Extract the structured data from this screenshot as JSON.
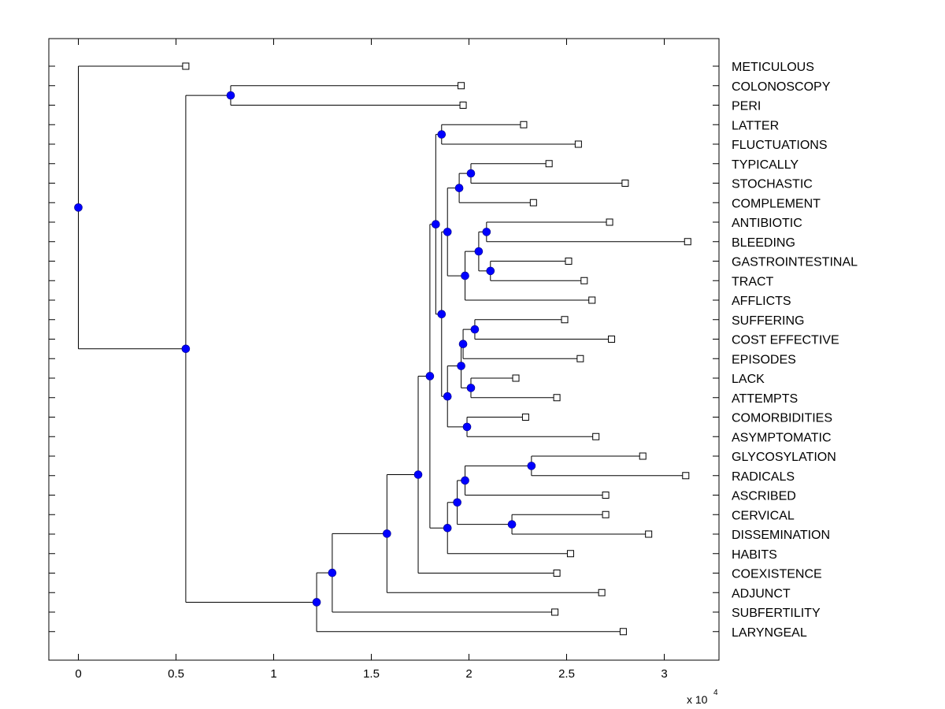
{
  "chart_data": {
    "type": "dendrogram",
    "title": "",
    "xlabel": "",
    "ylabel": "",
    "x_scale_label": "x 10",
    "x_scale_exponent": "4",
    "xlim": [
      -0.15,
      3.28
    ],
    "xticks": [
      0,
      0.5,
      1,
      1.5,
      2,
      2.5,
      3
    ],
    "xtick_labels": [
      "0",
      "0.5",
      "1",
      "1.5",
      "2",
      "2.5",
      "3"
    ],
    "grid": false,
    "node_color": "#0000ff",
    "line_color": "#000000",
    "leaves": [
      {
        "label": "METICULOUS",
        "x": 0.55
      },
      {
        "label": "COLONOSCOPY",
        "x": 1.96
      },
      {
        "label": "PERI",
        "x": 1.97
      },
      {
        "label": "LATTER",
        "x": 2.28
      },
      {
        "label": "FLUCTUATIONS",
        "x": 2.56
      },
      {
        "label": "TYPICALLY",
        "x": 2.41
      },
      {
        "label": "STOCHASTIC",
        "x": 2.8
      },
      {
        "label": "COMPLEMENT",
        "x": 2.33
      },
      {
        "label": "ANTIBIOTIC",
        "x": 2.72
      },
      {
        "label": "BLEEDING",
        "x": 3.12
      },
      {
        "label": "GASTROINTESTINAL",
        "x": 2.51
      },
      {
        "label": "TRACT",
        "x": 2.59
      },
      {
        "label": "AFFLICTS",
        "x": 2.63
      },
      {
        "label": "SUFFERING",
        "x": 2.49
      },
      {
        "label": "COST EFFECTIVE",
        "x": 2.73
      },
      {
        "label": "EPISODES",
        "x": 2.57
      },
      {
        "label": "LACK",
        "x": 2.24
      },
      {
        "label": "ATTEMPTS",
        "x": 2.45
      },
      {
        "label": "COMORBIDITIES",
        "x": 2.29
      },
      {
        "label": "ASYMPTOMATIC",
        "x": 2.65
      },
      {
        "label": "GLYCOSYLATION",
        "x": 2.89
      },
      {
        "label": "RADICALS",
        "x": 3.11
      },
      {
        "label": "ASCRIBED",
        "x": 2.7
      },
      {
        "label": "CERVICAL",
        "x": 2.7
      },
      {
        "label": "DISSEMINATION",
        "x": 2.92
      },
      {
        "label": "HABITS",
        "x": 2.52
      },
      {
        "label": "COEXISTENCE",
        "x": 2.45
      },
      {
        "label": "ADJUNCT",
        "x": 2.68
      },
      {
        "label": "SUBFERTILITY",
        "x": 2.44
      },
      {
        "label": "LARYNGEAL",
        "x": 2.79
      }
    ],
    "nodes": [
      {
        "id": "n1",
        "x": 0.78,
        "children": [
          "L1",
          "L2"
        ]
      },
      {
        "id": "n2",
        "x": 1.86,
        "children": [
          "L3",
          "L4"
        ]
      },
      {
        "id": "n3",
        "x": 2.01,
        "children": [
          "L5",
          "L6"
        ]
      },
      {
        "id": "n4",
        "x": 1.95,
        "children": [
          "n3",
          "L7"
        ]
      },
      {
        "id": "n5",
        "x": 2.09,
        "children": [
          "L8",
          "L9"
        ]
      },
      {
        "id": "n6",
        "x": 2.11,
        "children": [
          "L10",
          "L11"
        ]
      },
      {
        "id": "n7",
        "x": 2.05,
        "children": [
          "n5",
          "n6"
        ]
      },
      {
        "id": "n8",
        "x": 1.98,
        "children": [
          "n7",
          "L12"
        ]
      },
      {
        "id": "n9",
        "x": 1.89,
        "children": [
          "n4",
          "n8"
        ]
      },
      {
        "id": "n10",
        "x": 2.03,
        "children": [
          "L13",
          "L14"
        ]
      },
      {
        "id": "n11",
        "x": 1.97,
        "children": [
          "n10",
          "L15"
        ]
      },
      {
        "id": "n12",
        "x": 2.01,
        "children": [
          "L16",
          "L17"
        ]
      },
      {
        "id": "n13",
        "x": 1.96,
        "children": [
          "n11",
          "n12"
        ]
      },
      {
        "id": "n14",
        "x": 1.99,
        "children": [
          "L18",
          "L19"
        ]
      },
      {
        "id": "n15",
        "x": 1.89,
        "children": [
          "n13",
          "n14"
        ]
      },
      {
        "id": "n16",
        "x": 1.86,
        "children": [
          "n9",
          "n15"
        ]
      },
      {
        "id": "n17",
        "x": 1.83,
        "children": [
          "n2",
          "n16"
        ]
      },
      {
        "id": "n18",
        "x": 2.32,
        "children": [
          "L20",
          "L21"
        ]
      },
      {
        "id": "n19",
        "x": 1.98,
        "children": [
          "n18",
          "L22"
        ]
      },
      {
        "id": "n20",
        "x": 2.22,
        "children": [
          "L23",
          "L24"
        ]
      },
      {
        "id": "n21",
        "x": 1.94,
        "children": [
          "n19",
          "n20"
        ]
      },
      {
        "id": "n22",
        "x": 1.89,
        "children": [
          "n21",
          "L25"
        ]
      },
      {
        "id": "n23",
        "x": 1.8,
        "children": [
          "n17",
          "n22"
        ]
      },
      {
        "id": "n24",
        "x": 1.74,
        "children": [
          "n23",
          "L26"
        ]
      },
      {
        "id": "n25",
        "x": 1.58,
        "children": [
          "n24",
          "L27"
        ]
      },
      {
        "id": "n26",
        "x": 1.3,
        "children": [
          "n25",
          "L28"
        ]
      },
      {
        "id": "n27",
        "x": 1.22,
        "children": [
          "n26",
          "L29"
        ]
      },
      {
        "id": "n28",
        "x": 0.55,
        "children": [
          "n1",
          "n27"
        ]
      },
      {
        "id": "n29",
        "x": 0.0,
        "children": [
          "L0",
          "n28"
        ]
      }
    ]
  }
}
